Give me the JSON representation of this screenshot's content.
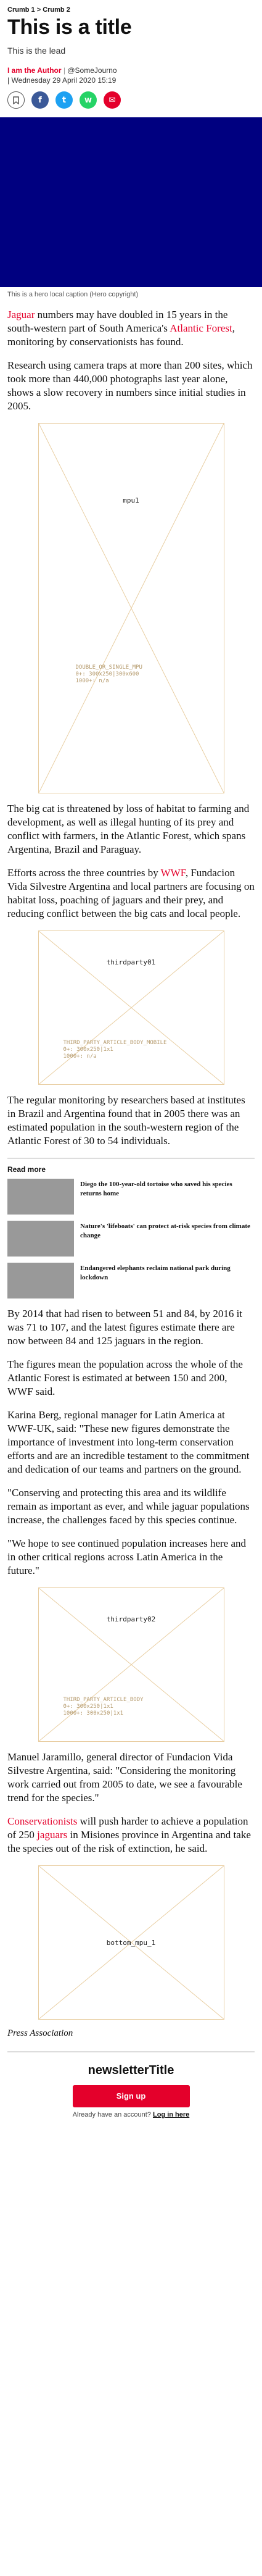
{
  "breadcrumb": {
    "crumb1": "Crumb 1",
    "separator": ">",
    "crumb2": "Crumb 2"
  },
  "article": {
    "title": "This is a title",
    "lead": "This is the lead",
    "author_prefix": "I am the Author",
    "author_separator": "|",
    "author_handle": "@SomeJourno",
    "date": "| Wednesday 29 April 2020 15:19",
    "hero_color": "#000080",
    "hero_caption": "This is a hero local caption (Hero copyright)"
  },
  "share": {
    "bookmark_icon": "bookmark-icon",
    "facebook_glyph": "f",
    "twitter_glyph": "t",
    "whatsapp_glyph": "w",
    "email_glyph": "✉"
  },
  "body": {
    "p1_link1": "Jaguar",
    "p1_text1": " numbers may have doubled in 15 years in the south-western part of South America's ",
    "p1_link2": "Atlantic Forest",
    "p1_text2": ", monitoring by conservationists has found.",
    "p2": "Research using camera traps at more than 200 sites, which took more than 440,000 photographs last year alone, shows a slow recovery in numbers since initial studies in 2005.",
    "p3": "The big cat is threatened by loss of habitat to farming and development, as well as illegal hunting of its prey and conflict with farmers, in the Atlantic Forest, which spans Argentina, Brazil and Paraguay.",
    "p4_text1": "Efforts across the three countries by ",
    "p4_link": "WWF",
    "p4_text2": ", Fundacion Vida Silvestre Argentina and local partners are focusing on habitat loss, poaching of jaguars and their prey, and reducing conflict between the big cats and local people.",
    "p5": "The regular monitoring by researchers based at institutes in Brazil and Argentina found that in 2005 there was an estimated population in the south-western region of the Atlantic Forest of 30 to 54 individuals.",
    "p6": "By 2014 that had risen to between 51 and 84, by 2016 it was 71 to 107, and the latest figures estimate there are now between 84 and 125 jaguars in the region.",
    "p7": "The figures mean the population across the whole of the Atlantic Forest is estimated at between 150 and 200, WWF said.",
    "p8": "Karina Berg, regional manager for Latin America at WWF-UK, said: \"These new figures demonstrate the importance of investment into long-term conservation efforts and are an incredible testament to the commitment and dedication of our teams and partners on the ground.",
    "p9": "\"Conserving and protecting this area and its wildlife remain as important as ever, and while jaguar populations increase, the challenges faced by this species continue.",
    "p10": "\"We hope to see continued population increases here and in other critical regions across Latin America in the future.\"",
    "p11": "Manuel Jaramillo, general director of Fundacion Vida Silvestre Argentina, said: \"Considering the monitoring work carried out from 2005 to date, we see a favourable trend for the species.\"",
    "p12_link1": "Conservationists",
    "p12_text1": " will push harder to achieve a population of 250 ",
    "p12_link2": "jaguars",
    "p12_text2": " in Misiones province in Argentina and take the species out of the risk of extinction, he said.",
    "credit": "Press Association"
  },
  "ads": {
    "mpu1": {
      "label": "mpu1",
      "info": "DOUBLE_OR_SINGLE_MPU\n0+: 300x250|300x600\n1000+: n/a"
    },
    "thirdparty01": {
      "label": "thirdparty01",
      "info": "THIRD_PARTY_ARTICLE_BODY_MOBILE\n0+: 300x250|1x1\n1000+: n/a"
    },
    "thirdparty02": {
      "label": "thirdparty02",
      "info": "THIRD_PARTY_ARTICLE_BODY\n0+: 300x250|1x1\n1000+: 300x250|1x1"
    },
    "bottom_mpu1": {
      "label": "bottom_mpu_1",
      "info": ""
    }
  },
  "read_more": {
    "heading": "Read more",
    "items": [
      "Diego the 100-year-old tortoise who saved his species returns home",
      "Nature's 'lifeboats' can protect at-risk species from climate change",
      "Endangered elephants reclaim national park during lockdown"
    ]
  },
  "newsletter": {
    "title": "newsletterTitle",
    "signup_label": "Sign up",
    "have_account_text": "Already have an account?",
    "login_link": "Log in here"
  },
  "colors": {
    "accent": "#e4002b",
    "hero": "#000080"
  }
}
